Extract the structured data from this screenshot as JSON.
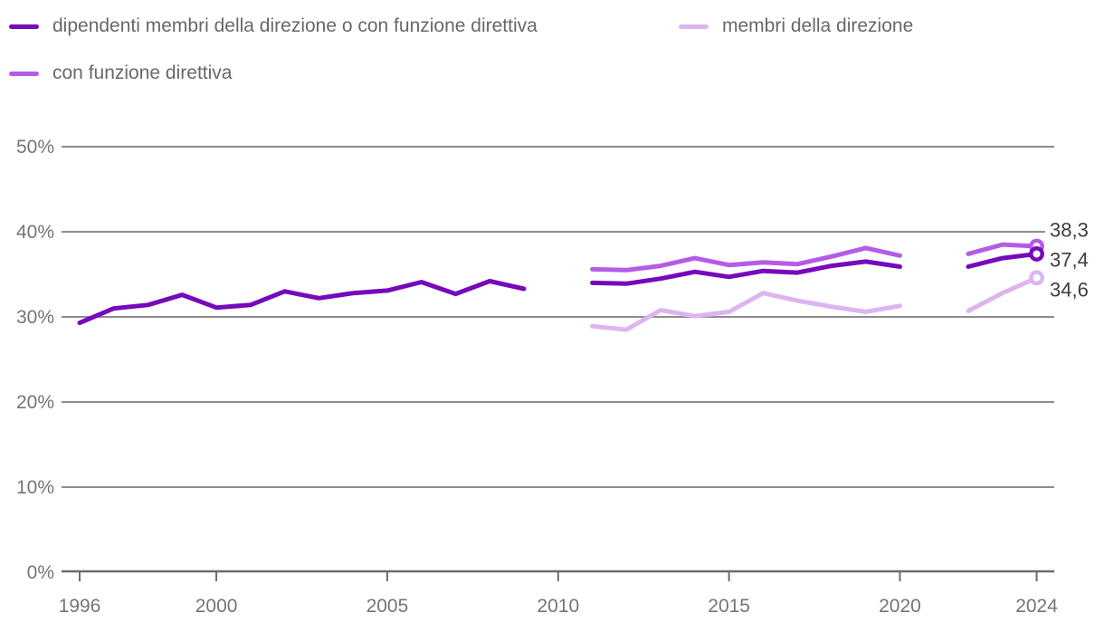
{
  "colors": {
    "grid": "#8d8d8d",
    "axis": "#6b6b6b",
    "axis_text": "#757575",
    "legend_text": "#686868",
    "value_text": "#3d3d3d",
    "background": "#ffffff"
  },
  "chart_data": {
    "type": "line",
    "title": "",
    "xlabel": "",
    "ylabel": "",
    "unit": "%",
    "grid": true,
    "legend_position": "top",
    "ylim": [
      0,
      50
    ],
    "x_range": [
      1996,
      2024
    ],
    "y_tick_values": [
      0,
      10,
      20,
      30,
      40,
      50
    ],
    "y_tick_labels": [
      "0%",
      "10%",
      "20%",
      "30%",
      "40%",
      "50%"
    ],
    "x_tick_years": [
      1996,
      2000,
      2005,
      2010,
      2015,
      2020,
      2024
    ],
    "x_tick_labels": [
      "1996",
      "2000",
      "2005",
      "2010",
      "2015",
      "2020",
      "2024"
    ],
    "series": [
      {
        "name": "dipendenti membri della direzione o con funzione direttiva",
        "color": "#7609bb",
        "end_year": 2024,
        "end_value": 37.4,
        "end_label": "37,4",
        "segments": [
          {
            "start_year": 1996,
            "values": [
              29.3,
              31.0,
              31.4,
              32.6,
              31.1,
              31.4,
              33.0,
              32.2,
              32.8,
              33.1,
              34.1,
              32.7,
              34.2,
              33.3
            ]
          },
          {
            "start_year": 2011,
            "values": [
              34.0,
              33.9,
              34.5,
              35.3,
              34.7,
              35.4,
              35.2,
              36.0,
              36.5,
              35.9
            ]
          },
          {
            "start_year": 2022,
            "values": [
              35.9,
              36.9,
              37.4
            ]
          }
        ]
      },
      {
        "name": "con funzione direttiva",
        "color": "#b45ce6",
        "end_year": 2024,
        "end_value": 38.3,
        "end_label": "38,3",
        "segments": [
          {
            "start_year": 2011,
            "values": [
              35.6,
              35.5,
              36.0,
              36.9,
              36.1,
              36.4,
              36.2,
              37.1,
              38.1,
              37.2
            ]
          },
          {
            "start_year": 2022,
            "values": [
              37.4,
              38.5,
              38.3
            ]
          }
        ]
      },
      {
        "name": "membri della direzione",
        "color": "#dcb5f0",
        "end_year": 2024,
        "end_value": 34.6,
        "end_label": "34,6",
        "segments": [
          {
            "start_year": 2011,
            "values": [
              28.9,
              28.5,
              30.8,
              30.1,
              30.6,
              32.8,
              31.9,
              31.2,
              30.6,
              31.3
            ]
          },
          {
            "start_year": 2022,
            "values": [
              30.7,
              32.8,
              34.6
            ]
          }
        ]
      }
    ],
    "legend": [
      {
        "series_index": 0,
        "label": "dipendenti membri della direzione o con funzione direttiva"
      },
      {
        "series_index": 2,
        "label": "membri della direzione"
      },
      {
        "series_index": 1,
        "label": "con funzione direttiva"
      }
    ]
  }
}
